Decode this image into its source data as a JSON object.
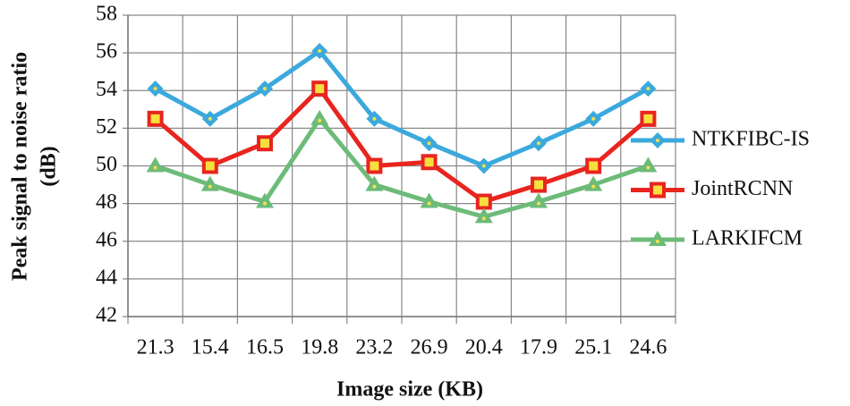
{
  "chart_data": {
    "type": "line",
    "ylabel": [
      "Peak signal to noise ratio",
      "(dB)"
    ],
    "xlabel": "Image size (KB)",
    "categories": [
      "21.3",
      "15.4",
      "16.5",
      "19.8",
      "23.2",
      "26.9",
      "20.4",
      "17.9",
      "25.1",
      "24.6"
    ],
    "series": [
      {
        "name": "NTKFIBC-IS",
        "color": "#3ba9dd",
        "marker": "diamond",
        "values": [
          54.1,
          52.5,
          54.1,
          56.1,
          52.5,
          51.2,
          50.0,
          51.2,
          52.5,
          54.1
        ]
      },
      {
        "name": "JointRCNN",
        "color": "#e8251f",
        "marker": "square",
        "values": [
          52.5,
          50.0,
          51.2,
          54.1,
          50.0,
          50.2,
          48.1,
          49.0,
          50.0,
          52.5
        ]
      },
      {
        "name": "LARKIFCM",
        "color": "#6dbb78",
        "marker": "triangle",
        "values": [
          50.0,
          49.0,
          48.1,
          52.5,
          49.0,
          48.1,
          47.3,
          48.1,
          49.0,
          50.0
        ]
      }
    ],
    "ylim": [
      42,
      58
    ],
    "yticks": [
      42,
      44,
      46,
      48,
      50,
      52,
      54,
      56,
      58
    ],
    "grid": true,
    "legend": "right"
  }
}
